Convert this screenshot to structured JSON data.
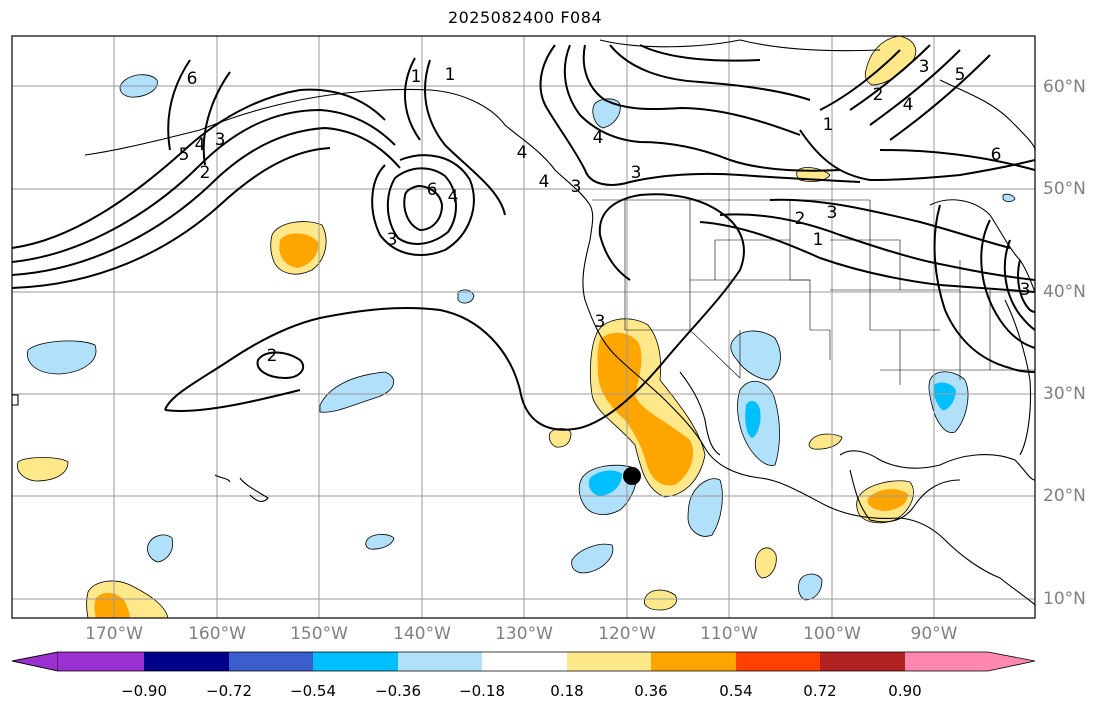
{
  "title": "2025082400 F084",
  "map": {
    "extent": {
      "lon": [
        -180,
        -80
      ],
      "lat": [
        8,
        65
      ]
    },
    "longitude_labels": [
      "170°W",
      "160°W",
      "150°W",
      "140°W",
      "130°W",
      "120°W",
      "110°W",
      "100°W",
      "90°W"
    ],
    "latitude_labels": [
      "60°N",
      "50°N",
      "40°N",
      "30°N",
      "20°N",
      "10°N"
    ],
    "contour_labels": [
      "6",
      "5",
      "4",
      "3",
      "2",
      "1",
      "1",
      "3",
      "6",
      "4",
      "3",
      "3",
      "4",
      "4",
      "3",
      "2",
      "3",
      "1",
      "2",
      "1",
      "4",
      "3",
      "5",
      "2",
      "6",
      "4",
      "3"
    ],
    "marker": {
      "lon": -119.5,
      "lat": 22,
      "label": "storm-center-marker"
    }
  },
  "colorbar": {
    "ticks": [
      "−0.90",
      "−0.72",
      "−0.54",
      "−0.36",
      "−0.18",
      "0.18",
      "0.36",
      "0.54",
      "0.72",
      "0.90"
    ],
    "colors": [
      "#9b30d0",
      "#00008b",
      "#3a5fcd",
      "#00bfff",
      "#b0e0fa",
      "#ffffff",
      "#ffe88a",
      "#ffa500",
      "#ff4000",
      "#b22222",
      "#ff88b0"
    ]
  }
}
